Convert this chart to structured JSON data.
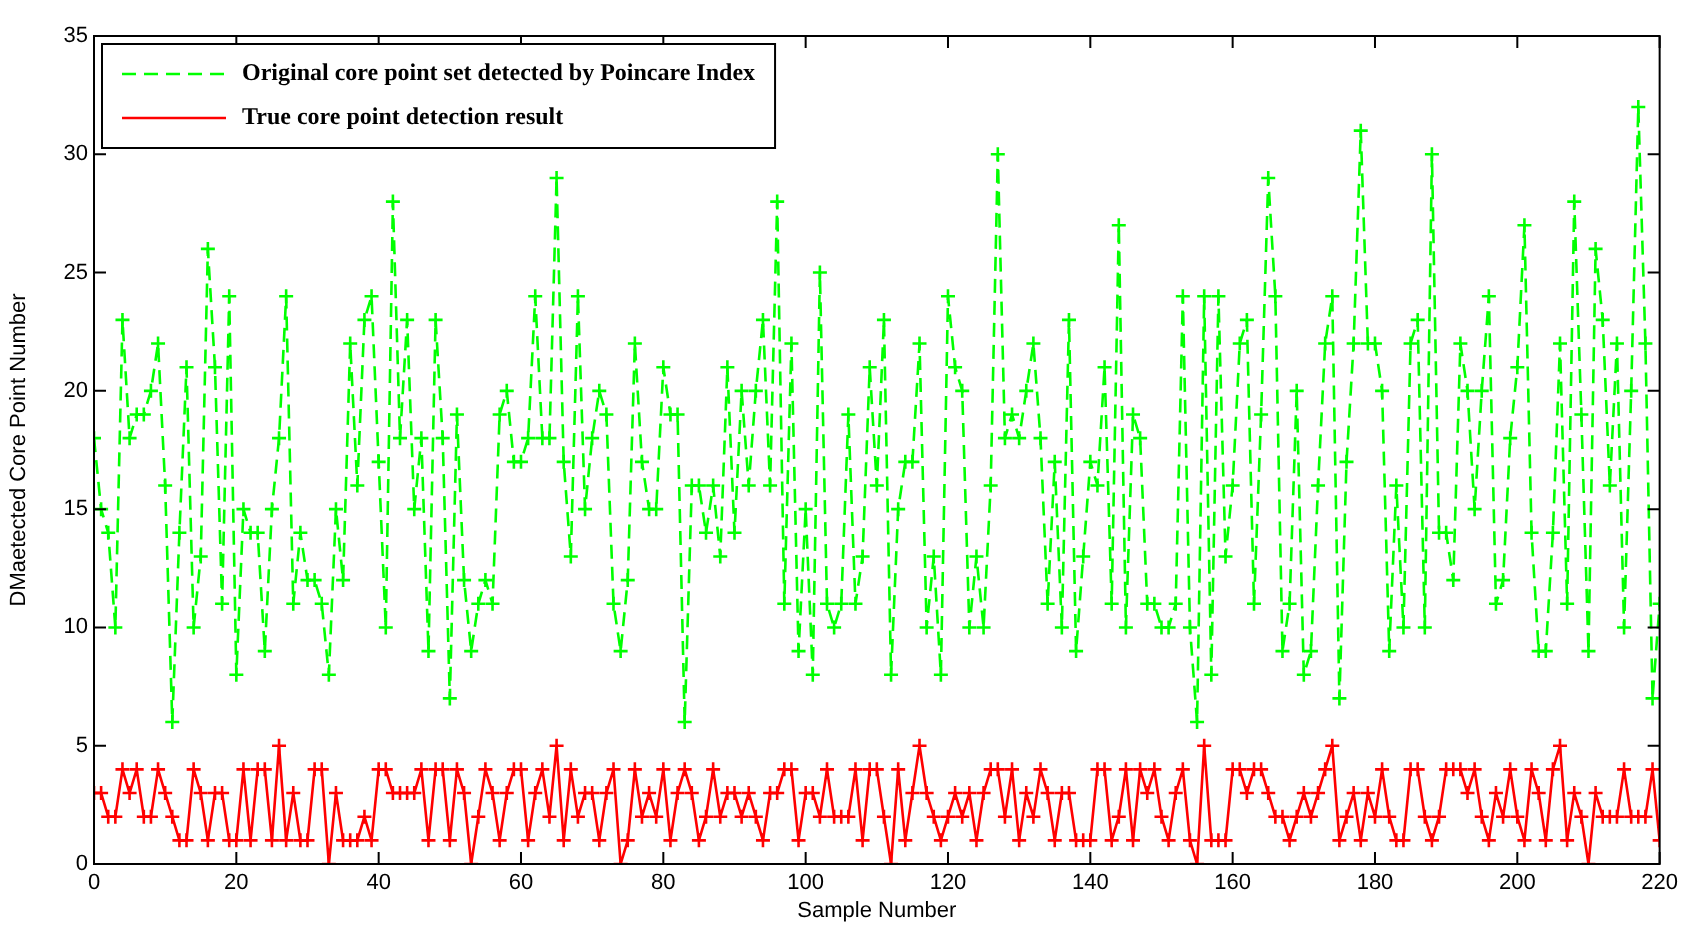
{
  "chart_data": {
    "type": "line",
    "xlabel": "Sample Number",
    "ylabel": "DMaetected Core Point Number",
    "x": [
      0,
      1,
      2,
      3,
      4,
      5,
      6,
      7,
      8,
      9,
      10,
      11,
      12,
      13,
      14,
      15,
      16,
      17,
      18,
      19,
      20,
      21,
      22,
      23,
      24,
      25,
      26,
      27,
      28,
      29,
      30,
      31,
      32,
      33,
      34,
      35,
      36,
      37,
      38,
      39,
      40,
      41,
      42,
      43,
      44,
      45,
      46,
      47,
      48,
      49,
      50,
      51,
      52,
      53,
      54,
      55,
      56,
      57,
      58,
      59,
      60,
      61,
      62,
      63,
      64,
      65,
      66,
      67,
      68,
      69,
      70,
      71,
      72,
      73,
      74,
      75,
      76,
      77,
      78,
      79,
      80,
      81,
      82,
      83,
      84,
      85,
      86,
      87,
      88,
      89,
      90,
      91,
      92,
      93,
      94,
      95,
      96,
      97,
      98,
      99,
      100,
      101,
      102,
      103,
      104,
      105,
      106,
      107,
      108,
      109,
      110,
      111,
      112,
      113,
      114,
      115,
      116,
      117,
      118,
      119,
      120,
      121,
      122,
      123,
      124,
      125,
      126,
      127,
      128,
      129,
      130,
      131,
      132,
      133,
      134,
      135,
      136,
      137,
      138,
      139,
      140,
      141,
      142,
      143,
      144,
      145,
      146,
      147,
      148,
      149,
      150,
      151,
      152,
      153,
      154,
      155,
      156,
      157,
      158,
      159,
      160,
      161,
      162,
      163,
      164,
      165,
      166,
      167,
      168,
      169,
      170,
      171,
      172,
      173,
      174,
      175,
      176,
      177,
      178,
      179,
      180,
      181,
      182,
      183,
      184,
      185,
      186,
      187,
      188,
      189,
      190,
      191,
      192,
      193,
      194,
      195,
      196,
      197,
      198,
      199,
      200,
      201,
      202,
      203,
      204,
      205,
      206,
      207,
      208,
      209,
      210,
      211,
      212,
      213,
      214,
      215,
      216,
      217,
      218,
      219,
      220
    ],
    "series": [
      {
        "name": "Original core point set detected by Poincare Index",
        "color": "#00ff00",
        "line_style": "dashed",
        "values": [
          18,
          15,
          14,
          10,
          23,
          18,
          19,
          19,
          20,
          22,
          16,
          6,
          14,
          21,
          10,
          13,
          26,
          21,
          11,
          24,
          8,
          15,
          14,
          14,
          9,
          15,
          18,
          24,
          11,
          14,
          12,
          12,
          11,
          8,
          15,
          12,
          22,
          16,
          23,
          24,
          17,
          10,
          28,
          18,
          23,
          15,
          18,
          9,
          23,
          18,
          7,
          19,
          12,
          9,
          11,
          12,
          11,
          19,
          20,
          17,
          17,
          18,
          24,
          18,
          18,
          29,
          17,
          13,
          24,
          15,
          18,
          20,
          19,
          11,
          9,
          12,
          22,
          17,
          15,
          15,
          21,
          19,
          19,
          6,
          16,
          16,
          14,
          16,
          13,
          21,
          14,
          20,
          16,
          20,
          23,
          16,
          28,
          11,
          22,
          9,
          15,
          8,
          25,
          11,
          10,
          11,
          19,
          11,
          13,
          21,
          16,
          23,
          8,
          15,
          17,
          17,
          22,
          10,
          13,
          8,
          24,
          21,
          20,
          10,
          13,
          10,
          16,
          30,
          18,
          19,
          18,
          20,
          22,
          18,
          11,
          17,
          10,
          23,
          9,
          13,
          17,
          16,
          21,
          11,
          27,
          10,
          19,
          18,
          11,
          11,
          10,
          10,
          11,
          24,
          10,
          6,
          24,
          8,
          24,
          13,
          16,
          22,
          23,
          11,
          19,
          29,
          24,
          9,
          11,
          20,
          8,
          9,
          16,
          22,
          24,
          7,
          17,
          22,
          31,
          22,
          22,
          20,
          9,
          16,
          10,
          22,
          23,
          10,
          30,
          14,
          14,
          12,
          22,
          20,
          15,
          20,
          24,
          11,
          12,
          18,
          21,
          27,
          14,
          9,
          9,
          14,
          22,
          11,
          28,
          19,
          9,
          26,
          23,
          16,
          22,
          10,
          20,
          32,
          22,
          7,
          11
        ]
      },
      {
        "name": "True core point detection result",
        "color": "#ff0000",
        "line_style": "solid",
        "values": [
          3,
          3,
          2,
          2,
          4,
          3,
          4,
          2,
          2,
          4,
          3,
          2,
          1,
          1,
          4,
          3,
          1,
          3,
          3,
          1,
          1,
          4,
          1,
          4,
          4,
          1,
          5,
          1,
          3,
          1,
          1,
          4,
          4,
          0,
          3,
          1,
          1,
          1,
          2,
          1,
          4,
          4,
          3,
          3,
          3,
          3,
          4,
          1,
          4,
          4,
          1,
          4,
          3,
          0,
          2,
          4,
          3,
          1,
          3,
          4,
          4,
          1,
          3,
          4,
          2,
          5,
          1,
          4,
          2,
          3,
          3,
          1,
          3,
          4,
          0,
          1,
          4,
          2,
          3,
          2,
          4,
          1,
          3,
          4,
          3,
          1,
          2,
          4,
          2,
          3,
          3,
          2,
          3,
          2,
          1,
          3,
          3,
          4,
          4,
          1,
          3,
          3,
          2,
          4,
          2,
          2,
          2,
          4,
          1,
          4,
          4,
          2,
          0,
          4,
          1,
          3,
          5,
          3,
          2,
          1,
          2,
          3,
          2,
          3,
          1,
          3,
          4,
          4,
          2,
          4,
          1,
          3,
          2,
          4,
          3,
          1,
          3,
          3,
          1,
          1,
          1,
          4,
          4,
          1,
          2,
          4,
          1,
          4,
          3,
          4,
          2,
          1,
          3,
          4,
          1,
          0,
          5,
          1,
          1,
          1,
          4,
          4,
          3,
          4,
          4,
          3,
          2,
          2,
          1,
          2,
          3,
          2,
          3,
          4,
          5,
          1,
          2,
          3,
          1,
          3,
          2,
          4,
          2,
          1,
          1,
          4,
          4,
          2,
          1,
          2,
          4,
          4,
          4,
          3,
          4,
          2,
          1,
          3,
          2,
          4,
          2,
          1,
          4,
          3,
          1,
          4,
          5,
          1,
          3,
          2,
          0,
          3,
          2,
          2,
          2,
          4,
          2,
          2,
          2,
          4,
          1
        ]
      }
    ],
    "xlim": [
      0,
      220
    ],
    "xticks": [
      0,
      20,
      40,
      60,
      80,
      100,
      120,
      140,
      160,
      180,
      200,
      220
    ],
    "ylim": [
      0,
      35
    ],
    "yticks": [
      0,
      5,
      10,
      15,
      20,
      25,
      30,
      35
    ],
    "grid": false,
    "legend": "top left",
    "marker": "cross"
  }
}
